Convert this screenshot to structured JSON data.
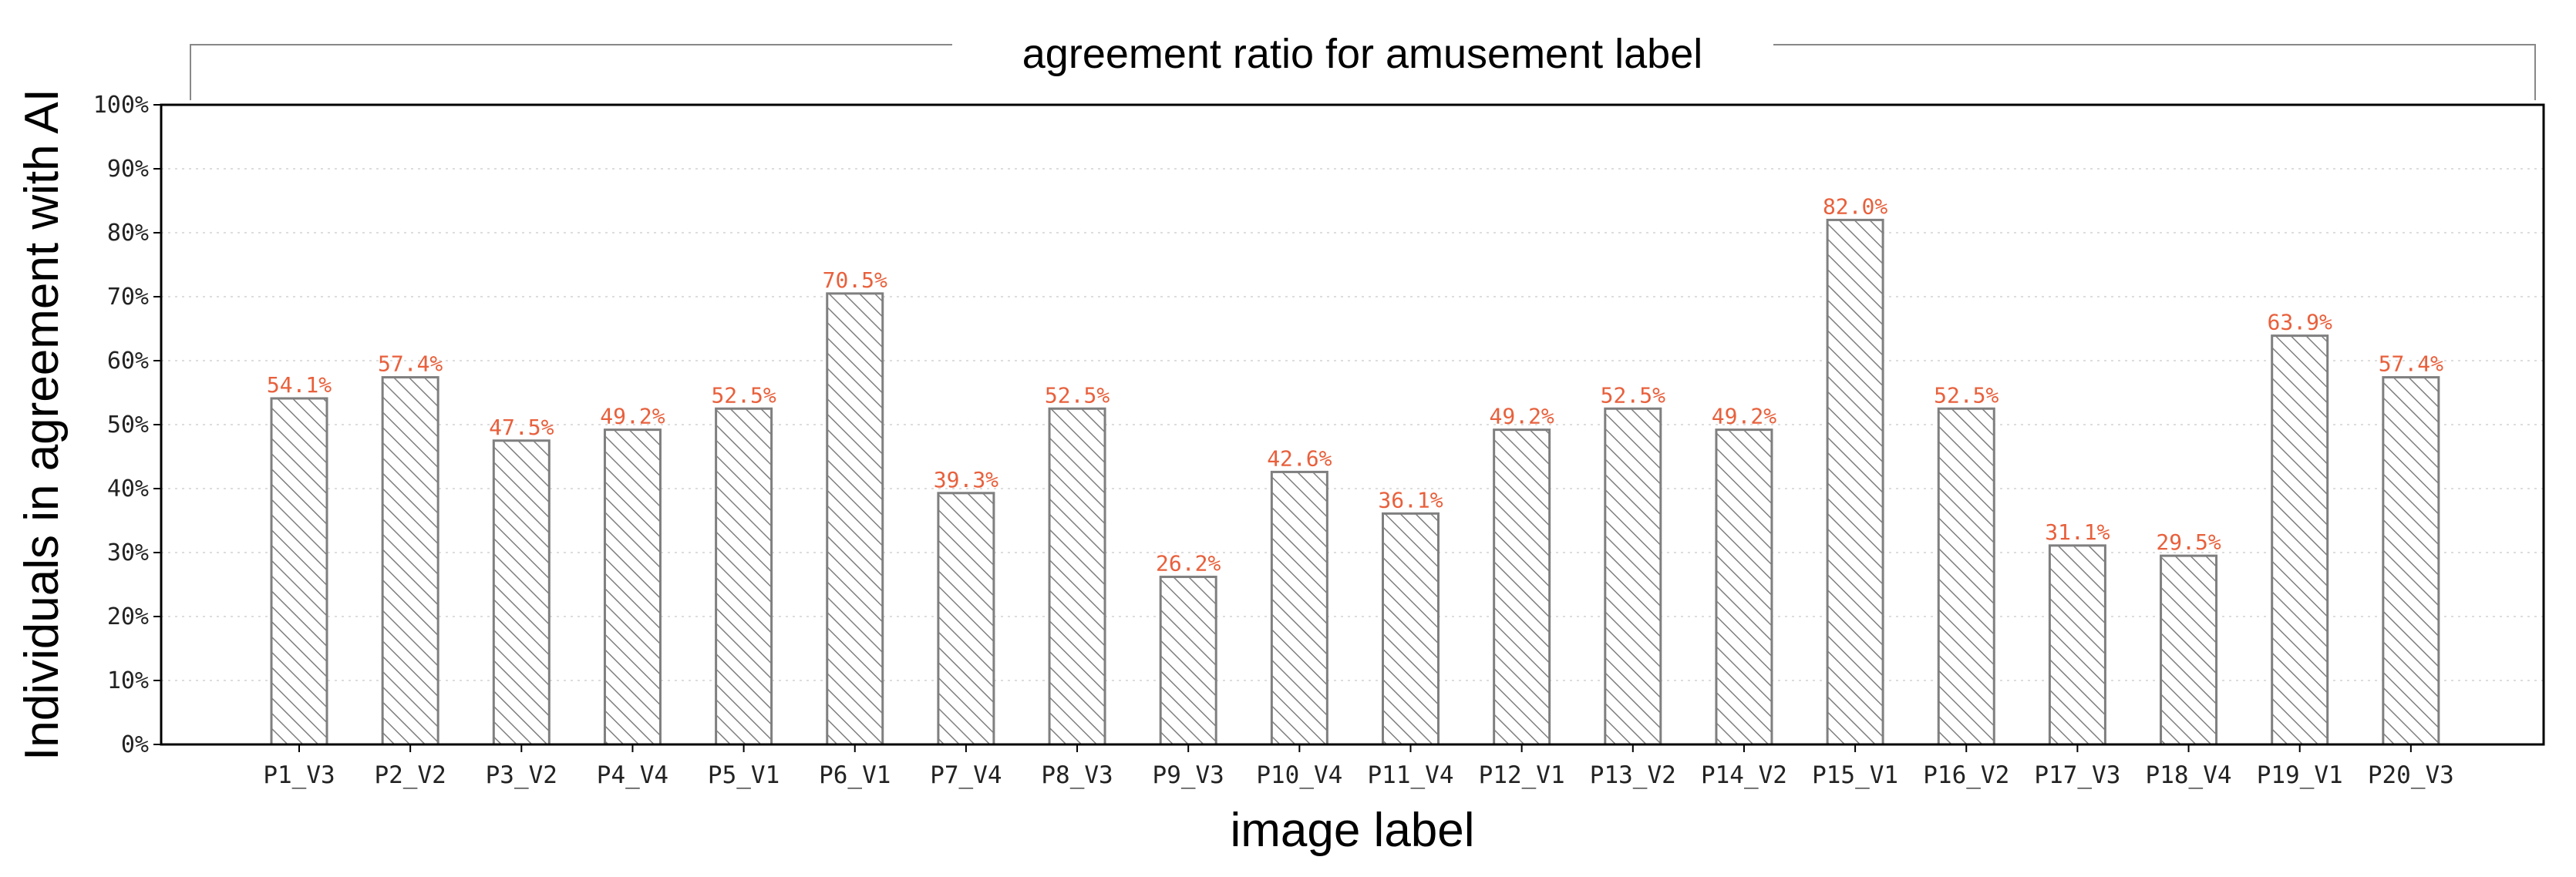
{
  "chart_data": {
    "type": "bar",
    "title": "agreement ratio for amusement label",
    "xlabel": "image label",
    "ylabel": "Individuals in agreement with AI",
    "categories": [
      "P1_V3",
      "P2_V2",
      "P3_V2",
      "P4_V4",
      "P5_V1",
      "P6_V1",
      "P7_V4",
      "P8_V3",
      "P9_V3",
      "P10_V4",
      "P11_V4",
      "P12_V1",
      "P13_V2",
      "P14_V2",
      "P15_V1",
      "P16_V2",
      "P17_V3",
      "P18_V4",
      "P19_V1",
      "P20_V3"
    ],
    "values": [
      54.1,
      57.4,
      47.5,
      49.2,
      52.5,
      70.5,
      39.3,
      52.5,
      26.2,
      42.6,
      36.1,
      49.2,
      52.5,
      49.2,
      82.0,
      52.5,
      31.1,
      29.5,
      63.9,
      57.4
    ],
    "value_labels": [
      "54.1%",
      "57.4%",
      "47.5%",
      "49.2%",
      "52.5%",
      "70.5%",
      "39.3%",
      "52.5%",
      "26.2%",
      "42.6%",
      "36.1%",
      "49.2%",
      "52.5%",
      "49.2%",
      "82.0%",
      "52.5%",
      "31.1%",
      "29.5%",
      "63.9%",
      "57.4%"
    ],
    "ylim": [
      0,
      100
    ],
    "yticks": [
      "0%",
      "10%",
      "20%",
      "30%",
      "40%",
      "50%",
      "60%",
      "70%",
      "80%",
      "90%",
      "100%"
    ],
    "grid": "horizontal dotted",
    "bar_fill": "white with diagonal hatch",
    "colors": {
      "bar_edge": "#7f7f7f",
      "hatch": "#7f7f7f",
      "value_label": "#e8603c",
      "grid": "#dddddd",
      "axes": "#000000"
    }
  }
}
